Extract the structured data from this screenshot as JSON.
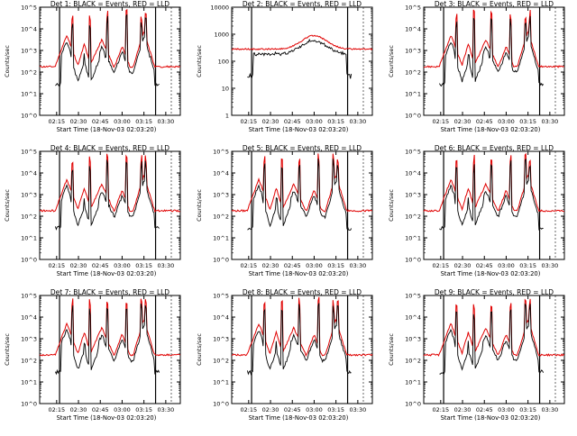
{
  "colors": {
    "events": "#000000",
    "lld": "#e00000",
    "axis": "#000000",
    "background": "#ffffff"
  },
  "chart_data": [
    {
      "type": "line",
      "title": "Det 1: BLACK = Events, RED = LLD",
      "xlabel": "Start Time (18-Nov-03 02:03:20)",
      "ylabel": "Counts/sec",
      "yscale": "log",
      "ylim_exp": [
        0,
        5
      ],
      "ytick_labels": [
        "10^0",
        "10^1",
        "10^2",
        "10^3",
        "10^4",
        "10^5"
      ],
      "xtick_labels": [
        "02:15",
        "02:30",
        "02:45",
        "03:00",
        "03:15",
        "03:30"
      ],
      "xlim": [
        "02:03:20",
        "03:40:00"
      ],
      "valid_interval": [
        "02:17:00",
        "03:23:00"
      ],
      "grid": false,
      "legend": "in title",
      "series": [
        {
          "name": "Events",
          "color": "#000000"
        },
        {
          "name": "LLD",
          "color": "#e00000"
        }
      ]
    },
    {
      "type": "line",
      "title": "Det 2: BLACK = Events, RED = LLD",
      "xlabel": "Start Time (18-Nov-03 02:03:20)",
      "ylabel": "Counts/sec",
      "yscale": "log",
      "ylim_exp": [
        0,
        4
      ],
      "ytick_labels": [
        "1",
        "10",
        "100",
        "1000",
        "10000"
      ],
      "xtick_labels": [
        "02:15",
        "02:30",
        "02:45",
        "03:00",
        "03:15",
        "03:30"
      ],
      "xlim": [
        "02:03:20",
        "03:40:00"
      ],
      "valid_interval": [
        "02:17:00",
        "03:23:00"
      ],
      "grid": false,
      "legend": "in title",
      "series": [
        {
          "name": "Events",
          "color": "#000000"
        },
        {
          "name": "LLD",
          "color": "#e00000"
        }
      ]
    },
    {
      "type": "line",
      "title": "Det 3: BLACK = Events, RED = LLD",
      "xlabel": "Start Time (18-Nov-03 02:03:20)",
      "ylabel": "Counts/sec",
      "yscale": "log",
      "ylim_exp": [
        0,
        5
      ],
      "ytick_labels": [
        "10^0",
        "10^1",
        "10^2",
        "10^3",
        "10^4",
        "10^5"
      ],
      "xtick_labels": [
        "02:15",
        "02:30",
        "02:45",
        "03:00",
        "03:15",
        "03:30"
      ],
      "xlim": [
        "02:03:20",
        "03:40:00"
      ],
      "valid_interval": [
        "02:17:00",
        "03:23:00"
      ],
      "grid": false,
      "legend": "in title",
      "series": [
        {
          "name": "Events",
          "color": "#000000"
        },
        {
          "name": "LLD",
          "color": "#e00000"
        }
      ]
    },
    {
      "type": "line",
      "title": "Det 4: BLACK = Events, RED = LLD",
      "xlabel": "Start Time (18-Nov-03 02:03:20)",
      "ylabel": "Counts/sec",
      "yscale": "log",
      "ylim_exp": [
        0,
        5
      ],
      "ytick_labels": [
        "10^0",
        "10^1",
        "10^2",
        "10^3",
        "10^4",
        "10^5"
      ],
      "xtick_labels": [
        "02:15",
        "02:30",
        "02:45",
        "03:00",
        "03:15",
        "03:30"
      ],
      "xlim": [
        "02:03:20",
        "03:40:00"
      ],
      "valid_interval": [
        "02:17:00",
        "03:23:00"
      ],
      "grid": false,
      "legend": "in title",
      "series": [
        {
          "name": "Events",
          "color": "#000000"
        },
        {
          "name": "LLD",
          "color": "#e00000"
        }
      ]
    },
    {
      "type": "line",
      "title": "Det 5: BLACK = Events, RED = LLD",
      "xlabel": "Start Time (18-Nov-03 02:03:20)",
      "ylabel": "Counts/sec",
      "yscale": "log",
      "ylim_exp": [
        0,
        5
      ],
      "ytick_labels": [
        "10^0",
        "10^1",
        "10^2",
        "10^3",
        "10^4",
        "10^5"
      ],
      "xtick_labels": [
        "02:15",
        "02:30",
        "02:45",
        "03:00",
        "03:15",
        "03:30"
      ],
      "xlim": [
        "02:03:20",
        "03:40:00"
      ],
      "valid_interval": [
        "02:17:00",
        "03:23:00"
      ],
      "grid": false,
      "legend": "in title",
      "series": [
        {
          "name": "Events",
          "color": "#000000"
        },
        {
          "name": "LLD",
          "color": "#e00000"
        }
      ]
    },
    {
      "type": "line",
      "title": "Det 6: BLACK = Events, RED = LLD",
      "xlabel": "Start Time (18-Nov-03 02:03:20)",
      "ylabel": "Counts/sec",
      "yscale": "log",
      "ylim_exp": [
        0,
        5
      ],
      "ytick_labels": [
        "10^0",
        "10^1",
        "10^2",
        "10^3",
        "10^4",
        "10^5"
      ],
      "xtick_labels": [
        "02:15",
        "02:30",
        "02:45",
        "03:00",
        "03:15",
        "03:30"
      ],
      "xlim": [
        "02:03:20",
        "03:40:00"
      ],
      "valid_interval": [
        "02:17:00",
        "03:23:00"
      ],
      "grid": false,
      "legend": "in title",
      "series": [
        {
          "name": "Events",
          "color": "#000000"
        },
        {
          "name": "LLD",
          "color": "#e00000"
        }
      ]
    },
    {
      "type": "line",
      "title": "Det 7: BLACK = Events, RED = LLD",
      "xlabel": "Start Time (18-Nov-03 02:03:20)",
      "ylabel": "Counts/sec",
      "yscale": "log",
      "ylim_exp": [
        0,
        5
      ],
      "ytick_labels": [
        "10^0",
        "10^1",
        "10^2",
        "10^3",
        "10^4",
        "10^5"
      ],
      "xtick_labels": [
        "02:15",
        "02:30",
        "02:45",
        "03:00",
        "03:15",
        "03:30"
      ],
      "xlim": [
        "02:03:20",
        "03:40:00"
      ],
      "valid_interval": [
        "02:17:00",
        "03:23:00"
      ],
      "grid": false,
      "legend": "in title",
      "series": [
        {
          "name": "Events",
          "color": "#000000"
        },
        {
          "name": "LLD",
          "color": "#e00000"
        }
      ]
    },
    {
      "type": "line",
      "title": "Det 8: BLACK = Events, RED = LLD",
      "xlabel": "Start Time (18-Nov-03 02:03:20)",
      "ylabel": "Counts/sec",
      "yscale": "log",
      "ylim_exp": [
        0,
        5
      ],
      "ytick_labels": [
        "10^0",
        "10^1",
        "10^2",
        "10^3",
        "10^4",
        "10^5"
      ],
      "xtick_labels": [
        "02:15",
        "02:30",
        "02:45",
        "03:00",
        "03:15",
        "03:30"
      ],
      "xlim": [
        "02:03:20",
        "03:40:00"
      ],
      "valid_interval": [
        "02:17:00",
        "03:23:00"
      ],
      "grid": false,
      "legend": "in title",
      "series": [
        {
          "name": "Events",
          "color": "#000000"
        },
        {
          "name": "LLD",
          "color": "#e00000"
        }
      ]
    },
    {
      "type": "line",
      "title": "Det 9: BLACK = Events, RED = LLD",
      "xlabel": "Start Time (18-Nov-03 02:03:20)",
      "ylabel": "Counts/sec",
      "yscale": "log",
      "ylim_exp": [
        0,
        5
      ],
      "ytick_labels": [
        "10^0",
        "10^1",
        "10^2",
        "10^3",
        "10^4",
        "10^5"
      ],
      "xtick_labels": [
        "02:15",
        "02:30",
        "02:45",
        "03:00",
        "03:15",
        "03:30"
      ],
      "xlim": [
        "02:03:20",
        "03:40:00"
      ],
      "valid_interval": [
        "02:17:00",
        "03:23:00"
      ],
      "grid": false,
      "legend": "in title",
      "series": [
        {
          "name": "Events",
          "color": "#000000"
        },
        {
          "name": "LLD",
          "color": "#e00000"
        }
      ]
    }
  ]
}
